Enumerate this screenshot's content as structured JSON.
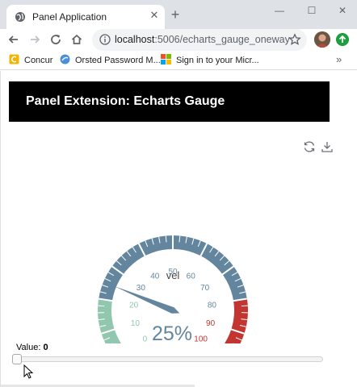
{
  "browser": {
    "tab_title": "Panel Application",
    "url_host": "localhost",
    "url_path": ":5006/echarts_gauge_oneway",
    "bookmarks": [
      {
        "label": "Concur",
        "icon": "concur-icon"
      },
      {
        "label": "Orsted Password M...",
        "icon": "orsted-icon"
      },
      {
        "label": "Sign in to your Micr...",
        "icon": "microsoft-icon"
      }
    ]
  },
  "header": {
    "title": "Panel Extension: Echarts Gauge"
  },
  "gauge": {
    "name": "vel",
    "value": 25,
    "display_value": "25%",
    "min": 0,
    "max": 100,
    "tick_labels": [
      "0",
      "10",
      "20",
      "30",
      "40",
      "50",
      "60",
      "70",
      "80",
      "90",
      "100"
    ],
    "bands": [
      {
        "to": 0.2,
        "color": "#91c7ae"
      },
      {
        "to": 0.8,
        "color": "#63869e"
      },
      {
        "to": 1.0,
        "color": "#c23531"
      }
    ]
  },
  "slider": {
    "label": "Value:",
    "value": "0"
  }
}
